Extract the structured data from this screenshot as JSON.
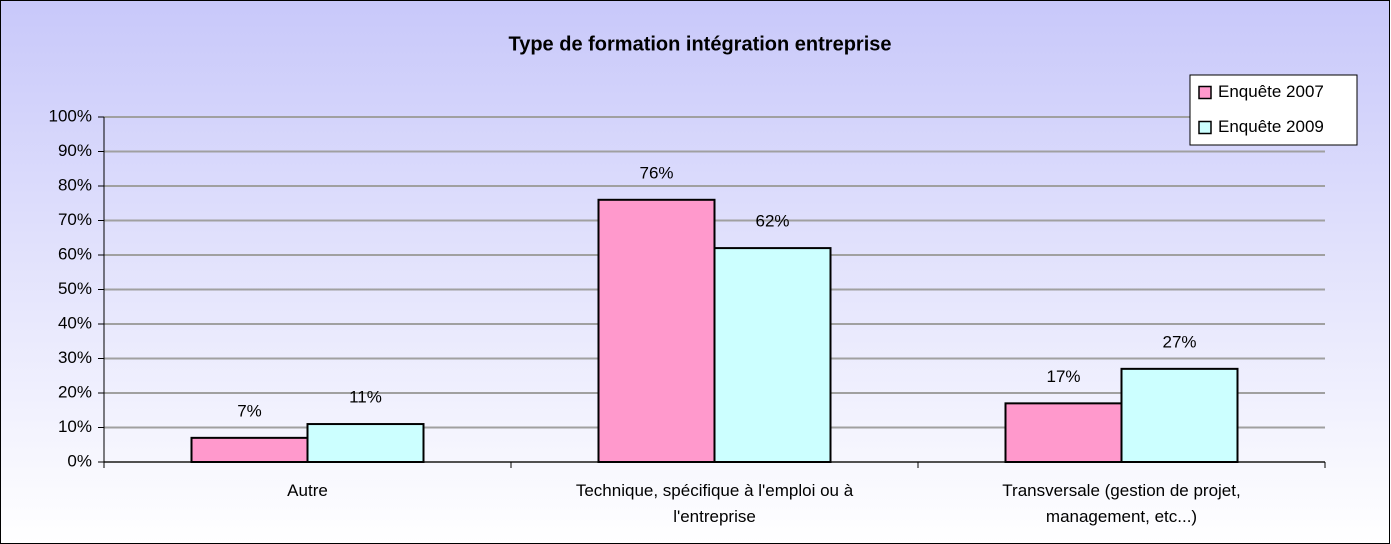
{
  "chart_data": {
    "type": "bar",
    "title": "Type de formation intégration entreprise",
    "categories": [
      "Autre",
      "Technique, spécifique à l'emploi ou à l'entreprise",
      "Transversale (gestion de projet, management, etc...)"
    ],
    "series": [
      {
        "name": "Enquête 2007",
        "color": "#ff99cc",
        "values": [
          7,
          76,
          17
        ],
        "value_labels": [
          "7%",
          "76%",
          "17%"
        ]
      },
      {
        "name": "Enquête 2009",
        "color": "#ccffff",
        "values": [
          11,
          62,
          27
        ],
        "value_labels": [
          "11%",
          "62%",
          "27%"
        ]
      }
    ],
    "ylim": [
      0,
      100
    ],
    "yticks": [
      {
        "value": 0,
        "label": "0%"
      },
      {
        "value": 10,
        "label": "10%"
      },
      {
        "value": 20,
        "label": "20%"
      },
      {
        "value": 30,
        "label": "30%"
      },
      {
        "value": 40,
        "label": "40%"
      },
      {
        "value": 50,
        "label": "50%"
      },
      {
        "value": 60,
        "label": "60%"
      },
      {
        "value": 70,
        "label": "70%"
      },
      {
        "value": 80,
        "label": "80%"
      },
      {
        "value": 90,
        "label": "90%"
      },
      {
        "value": 100,
        "label": "100%"
      }
    ],
    "grid": true,
    "legend": "top-right"
  }
}
